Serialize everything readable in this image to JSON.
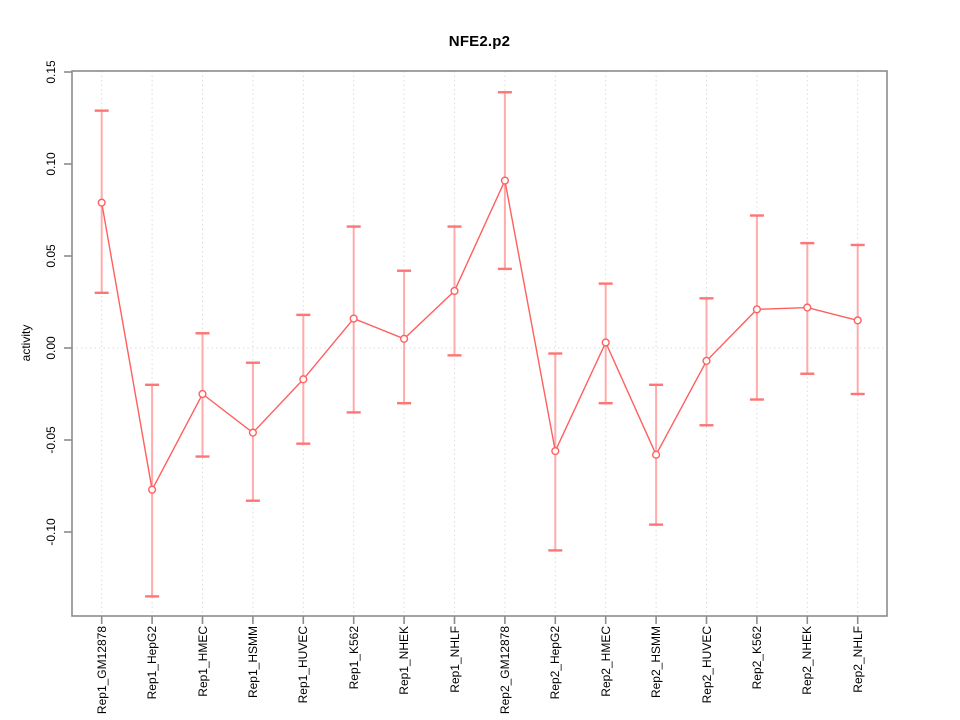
{
  "chart_data": {
    "type": "line",
    "title": "NFE2.p2",
    "ylabel": "activity",
    "xlabel": "",
    "categories": [
      "Rep1_GM12878",
      "Rep1_HepG2",
      "Rep1_HMEC",
      "Rep1_HSMM",
      "Rep1_HUVEC",
      "Rep1_K562",
      "Rep1_NHEK",
      "Rep1_NHLF",
      "Rep2_GM12878",
      "Rep2_HepG2",
      "Rep2_HMEC",
      "Rep2_HSMM",
      "Rep2_HUVEC",
      "Rep2_K562",
      "Rep2_NHEK",
      "Rep2_NHLF"
    ],
    "values": [
      0.079,
      -0.077,
      -0.025,
      -0.046,
      -0.017,
      0.016,
      0.005,
      0.031,
      0.091,
      -0.056,
      0.003,
      -0.058,
      -0.007,
      0.021,
      0.022,
      0.015
    ],
    "error_low": [
      0.03,
      -0.135,
      -0.059,
      -0.083,
      -0.052,
      -0.035,
      -0.03,
      -0.004,
      0.043,
      -0.11,
      -0.03,
      -0.096,
      -0.042,
      -0.028,
      -0.014,
      -0.025
    ],
    "error_high": [
      0.129,
      -0.02,
      0.008,
      -0.008,
      0.018,
      0.066,
      0.042,
      0.066,
      0.139,
      -0.003,
      0.035,
      -0.02,
      0.027,
      0.072,
      0.057,
      0.056
    ],
    "yticks": [
      "0.15",
      "0.10",
      "0.05",
      "0.00",
      "-0.05",
      "-0.10"
    ],
    "ytick_values": [
      0.15,
      0.1,
      0.05,
      0.0,
      -0.05,
      -0.1
    ],
    "ylim": [
      -0.146,
      0.15
    ],
    "marker": "open-circle",
    "legend_position": "none",
    "grid": {
      "vertical_lines": "dotted",
      "zero_line": "dotted"
    },
    "colors": {
      "series": "#ff5f5f",
      "error_bar": "#ffabab",
      "error_cap": "#ff7474",
      "axis": "#8c8c8c",
      "grid": "#dcdcdc",
      "text": "#000000",
      "background": "#ffffff"
    }
  }
}
